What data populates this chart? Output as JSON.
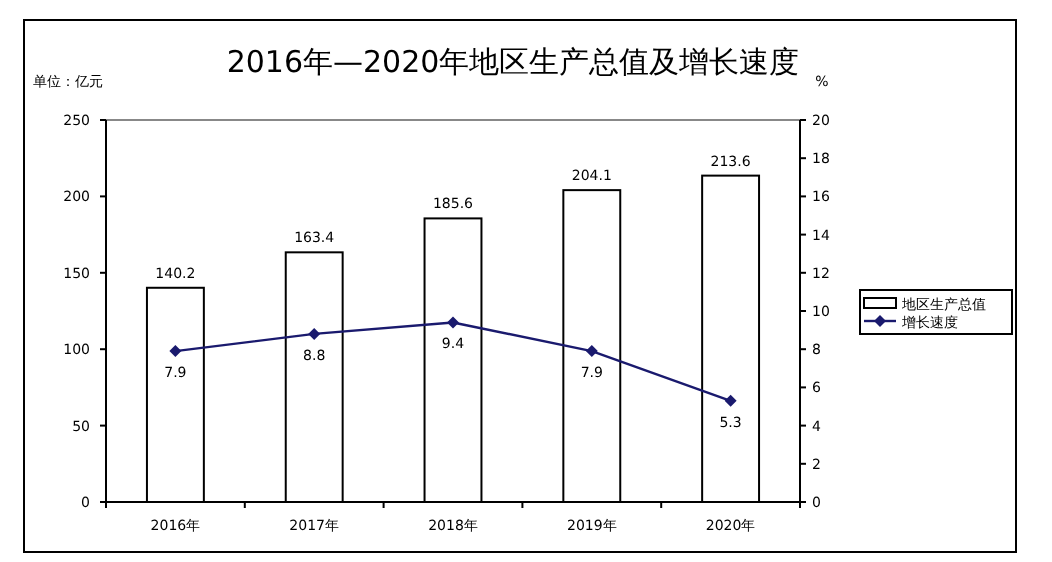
{
  "chart_data": {
    "type": "bar",
    "title": "2016年—2020年地区生产总值及增长速度",
    "ylabel": "单位：亿元",
    "y2label": "%",
    "categories": [
      "2016年",
      "2017年",
      "2018年",
      "2019年",
      "2020年"
    ],
    "series": [
      {
        "name": "地区生产总值",
        "color": "#ffffff",
        "values": [
          140.2,
          163.4,
          185.6,
          204.1,
          213.6
        ]
      },
      {
        "name": "增长速度",
        "type": "line",
        "axis": "y2",
        "color": "#1a1a6e",
        "values": [
          7.9,
          8.8,
          9.4,
          7.9,
          5.3
        ]
      }
    ],
    "ylim": [
      0,
      250
    ],
    "yticks": [
      0,
      50,
      100,
      150,
      200,
      250
    ],
    "y2lim": [
      0,
      20
    ],
    "y2ticks": [
      0,
      2,
      4,
      6,
      8,
      10,
      12,
      14,
      16,
      18,
      20
    ],
    "data_labels": true,
    "legend": "right",
    "marker": "diamond",
    "grid": false
  }
}
